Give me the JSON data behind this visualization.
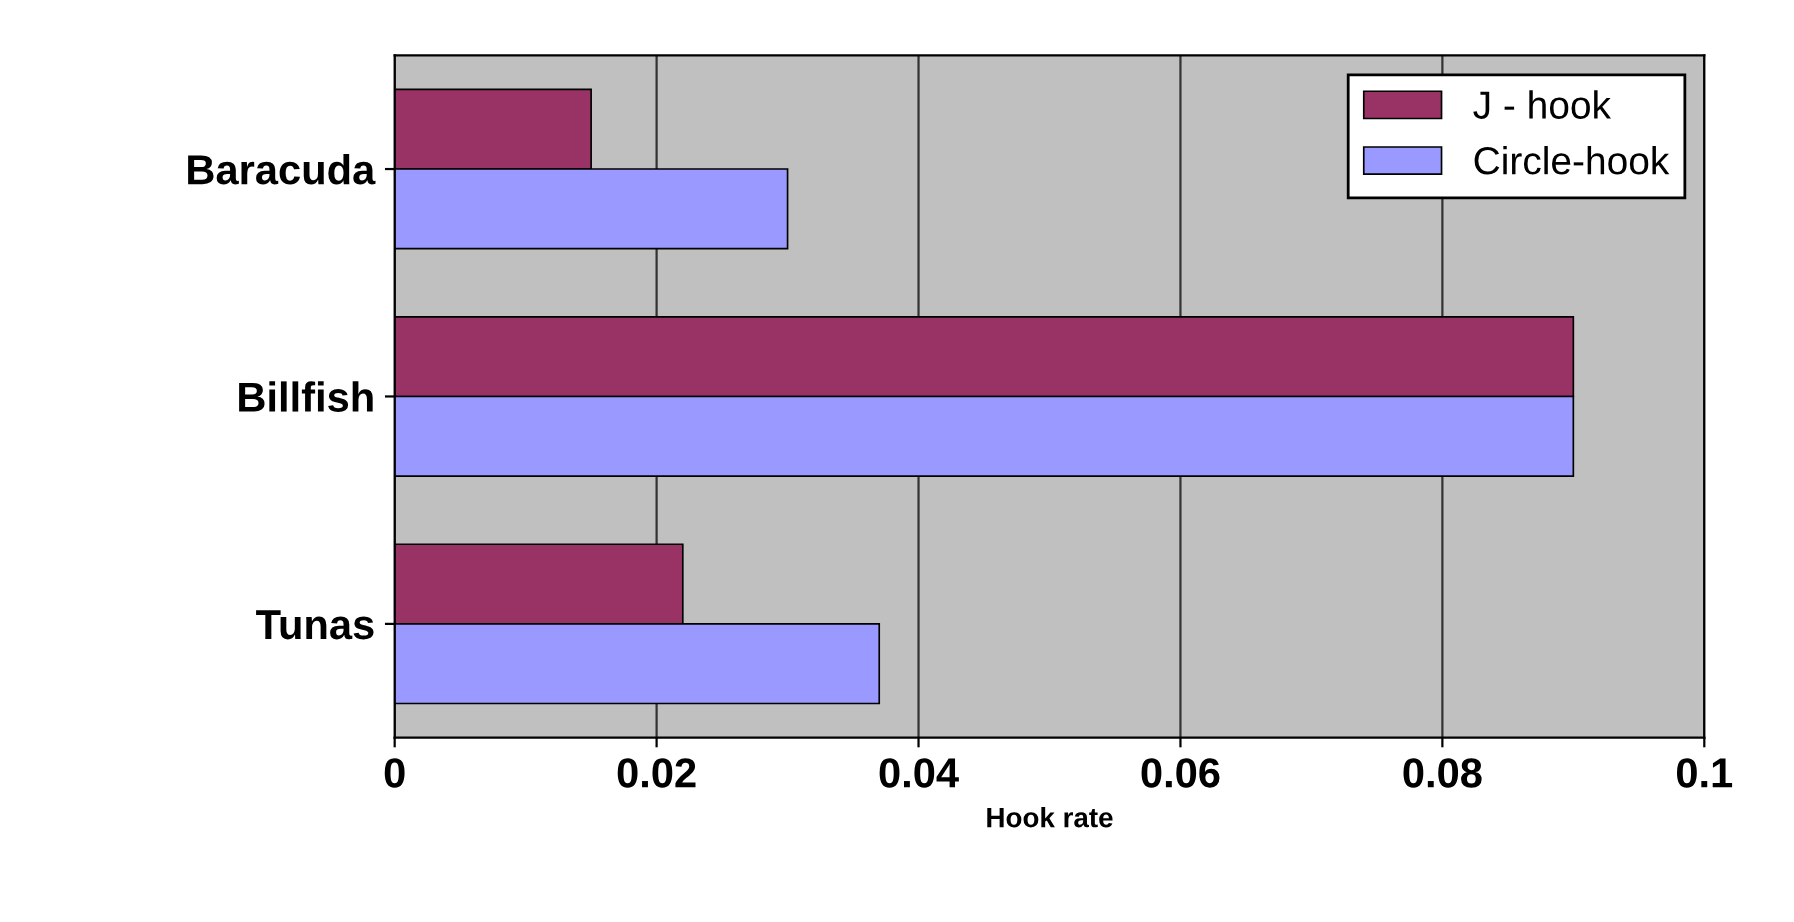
{
  "chart_data": {
    "type": "bar",
    "orientation": "horizontal",
    "xlabel": "Hook rate",
    "categories": [
      "Baracuda",
      "Billfish",
      "Tunas"
    ],
    "series": [
      {
        "name": "J - hook",
        "color": "#993366",
        "values": [
          0.015,
          0.09,
          0.022
        ]
      },
      {
        "name": "Circle-hook",
        "color": "#9999ff",
        "values": [
          0.03,
          0.09,
          0.037
        ]
      }
    ],
    "xlim": [
      0,
      0.1
    ],
    "xticks": [
      0,
      0.02,
      0.04,
      0.06,
      0.08,
      0.1
    ],
    "grid": "x",
    "legend": "top right"
  }
}
